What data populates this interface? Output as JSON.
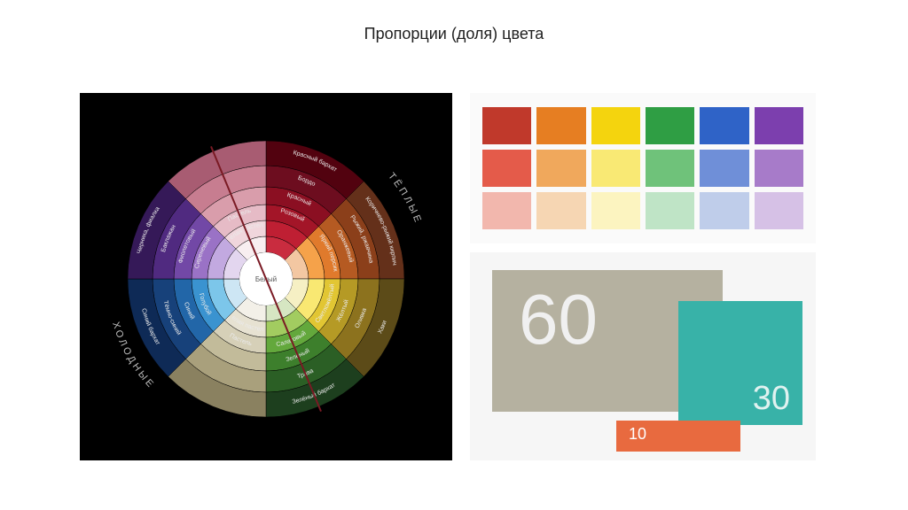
{
  "title": "Пропорции (доля) цвета",
  "wheel": {
    "background": "#000000",
    "center_label": "Белый",
    "outer_labels": [
      "ТЁПЛЫЕ",
      "ХОЛОДНЫЕ"
    ],
    "diag_color": "#7a1a24",
    "segments": 8,
    "ring_radii": [
      30,
      48,
      66,
      84,
      104,
      128,
      156
    ],
    "hues": [
      {
        "rings": [
          "#c92c3f",
          "#bf1f33",
          "#a31528",
          "#8b0f22",
          "#6d0d1f",
          "#52020f"
        ],
        "labels": [
          "Розовый",
          "Красный",
          "Бордо",
          "Красный бархат"
        ]
      },
      {
        "rings": [
          "#f3c7a2",
          "#f5a24a",
          "#e07a2c",
          "#b55a22",
          "#8b3f1a",
          "#64301a"
        ],
        "labels": [
          "Яркий персик",
          "Оранжевый",
          "Рыжий, ржавчина",
          "Коричнево-рыжий кирпич"
        ]
      },
      {
        "rings": [
          "#f6f0c4",
          "#f9e872",
          "#e2c633",
          "#b59a25",
          "#8c721e",
          "#5c4b18"
        ],
        "labels": [
          "Светложёлтый",
          "Жёлтый",
          "Оливка",
          "Хаки"
        ]
      },
      {
        "rings": [
          "#d6e6c2",
          "#a2cc60",
          "#63a83c",
          "#3d7f2c",
          "#2b5f25",
          "#1d3f1e"
        ],
        "labels": [
          "Салатовый",
          "Зелёный",
          "Трава",
          "Зелёный бархат"
        ]
      },
      {
        "rings": [
          "#cde6f4",
          "#7cc6ea",
          "#3a93d0",
          "#2266a8",
          "#17417a",
          "#0e2a56"
        ],
        "labels": [
          "Голубой",
          "Синий",
          "Тёмно-синий",
          "Синий бархат"
        ]
      },
      {
        "rings": [
          "#e3d6ef",
          "#c2a9e0",
          "#9a72c6",
          "#7248a6",
          "#502a80",
          "#351958"
        ],
        "labels": [
          "Сиреневый",
          "Фиолетовый",
          "Баклажан",
          "Черника, фиалка"
        ]
      }
    ],
    "neutral_rings": {
      "a": [
        "#f8eef0",
        "#f0d6dc",
        "#e6bbc6",
        "#d99dab",
        "#c77d90",
        "#a85c72"
      ],
      "b": [
        "#f3f0e8",
        "#e7e2d2",
        "#d6d0b8",
        "#c2bb9a",
        "#a9a07c",
        "#8a8160"
      ]
    },
    "inner_labels": [
      "Белая пастель",
      "Белая пастель",
      "Пастель",
      "Пастель"
    ]
  },
  "swatches": {
    "background": "#fafafa",
    "columns": [
      [
        "#c0392b",
        "#e45b4a",
        "#f2b7ad"
      ],
      [
        "#e67e22",
        "#f0a85c",
        "#f6d6b3"
      ],
      [
        "#f4d40e",
        "#f9e974",
        "#fcf4c0"
      ],
      [
        "#2f9e44",
        "#6fc27a",
        "#bfe4c6"
      ],
      [
        "#2f63c7",
        "#6f8fd8",
        "#bfcdea"
      ],
      [
        "#7c3fae",
        "#a77bc9",
        "#d6c1e6"
      ]
    ]
  },
  "proportion": {
    "background": "#f6f6f6",
    "blocks": [
      {
        "label": "60",
        "color": "#b5b1a0",
        "text": "#f0f0f0"
      },
      {
        "label": "30",
        "color": "#38b2a8",
        "text": "#e0f2f0"
      },
      {
        "label": "10",
        "color": "#e86a3f",
        "text": "#ffffff"
      }
    ]
  }
}
